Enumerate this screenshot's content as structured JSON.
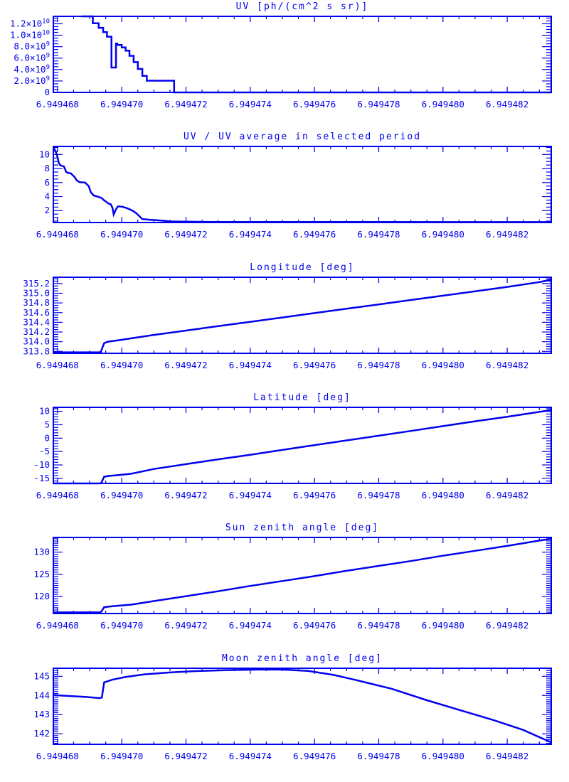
{
  "page": {
    "background": "#ffffff",
    "accent": "#0101EE"
  },
  "chart_data": {
    "type": "line",
    "grid": false,
    "legend": "none",
    "x_axis": {
      "u_min": -0.13,
      "u_max": 15.37,
      "minor_step": 0.5,
      "major_ticks": [
        {
          "u": 0,
          "label": "6.949468"
        },
        {
          "u": 2,
          "label": "6.949470"
        },
        {
          "u": 4,
          "label": "6.949472"
        },
        {
          "u": 6,
          "label": "6.949474"
        },
        {
          "u": 8,
          "label": "6.949476"
        },
        {
          "u": 10,
          "label": "6.949478"
        },
        {
          "u": 12,
          "label": "6.949480"
        },
        {
          "u": 14,
          "label": "6.949482"
        }
      ]
    },
    "plots": [
      {
        "title": "UV [ph/(cm^2 s sr)]",
        "y_range": [
          0,
          13.3
        ],
        "y_minor_step": 0.5,
        "y_labels": [
          {
            "v": 12,
            "label": "1.2×10^10"
          },
          {
            "v": 10,
            "label": "1.0×10^10"
          },
          {
            "v": 8,
            "label": "8.0×10^9"
          },
          {
            "v": 6,
            "label": "6.0×10^9"
          },
          {
            "v": 4,
            "label": "4.0×10^9"
          },
          {
            "v": 2,
            "label": "2.0×10^9"
          },
          {
            "v": 0,
            "label": "0"
          }
        ],
        "series": [
          [
            0.75,
            13.3
          ],
          [
            1.1,
            13.3
          ],
          [
            1.1,
            12.1
          ],
          [
            1.28,
            12.1
          ],
          [
            1.28,
            11.3
          ],
          [
            1.42,
            11.3
          ],
          [
            1.42,
            10.55
          ],
          [
            1.54,
            10.55
          ],
          [
            1.54,
            9.75
          ],
          [
            1.68,
            9.75
          ],
          [
            1.68,
            4.35
          ],
          [
            1.82,
            4.35
          ],
          [
            1.82,
            8.55
          ],
          [
            1.86,
            8.55
          ],
          [
            1.86,
            8.3
          ],
          [
            2.0,
            8.3
          ],
          [
            2.0,
            7.85
          ],
          [
            2.12,
            7.85
          ],
          [
            2.12,
            7.3
          ],
          [
            2.24,
            7.3
          ],
          [
            2.24,
            6.4
          ],
          [
            2.37,
            6.4
          ],
          [
            2.37,
            5.3
          ],
          [
            2.5,
            5.3
          ],
          [
            2.5,
            4.1
          ],
          [
            2.64,
            4.1
          ],
          [
            2.64,
            2.9
          ],
          [
            2.78,
            2.9
          ],
          [
            2.78,
            2.05
          ],
          [
            3.63,
            2.05
          ],
          [
            3.63,
            0
          ],
          [
            15.37,
            0
          ]
        ]
      },
      {
        "title": "UV / UV average in selected period",
        "y_range": [
          0.3,
          11.15
        ],
        "y_minor_step": 0.5,
        "y_labels": [
          {
            "v": 10,
            "label": "10"
          },
          {
            "v": 8,
            "label": "8"
          },
          {
            "v": 6,
            "label": "6"
          },
          {
            "v": 4,
            "label": "4"
          },
          {
            "v": 2,
            "label": "2"
          }
        ],
        "series": [
          [
            -0.13,
            11.1
          ],
          [
            -0.07,
            10.5
          ],
          [
            -0.02,
            10.0
          ],
          [
            0.04,
            8.8
          ],
          [
            0.09,
            8.45
          ],
          [
            0.2,
            8.3
          ],
          [
            0.27,
            7.5
          ],
          [
            0.32,
            7.4
          ],
          [
            0.42,
            7.3
          ],
          [
            0.53,
            6.8
          ],
          [
            0.6,
            6.3
          ],
          [
            0.69,
            6.05
          ],
          [
            0.86,
            6.0
          ],
          [
            0.97,
            5.5
          ],
          [
            1.04,
            4.6
          ],
          [
            1.13,
            4.15
          ],
          [
            1.24,
            4.0
          ],
          [
            1.37,
            3.8
          ],
          [
            1.44,
            3.5
          ],
          [
            1.53,
            3.2
          ],
          [
            1.59,
            3.0
          ],
          [
            1.66,
            2.9
          ],
          [
            1.71,
            2.4
          ],
          [
            1.75,
            1.45
          ],
          [
            1.82,
            2.2
          ],
          [
            1.88,
            2.6
          ],
          [
            2.02,
            2.55
          ],
          [
            2.13,
            2.4
          ],
          [
            2.24,
            2.2
          ],
          [
            2.35,
            1.95
          ],
          [
            2.46,
            1.6
          ],
          [
            2.55,
            1.2
          ],
          [
            2.64,
            0.8
          ],
          [
            2.86,
            0.7
          ],
          [
            3.08,
            0.62
          ],
          [
            3.3,
            0.55
          ],
          [
            3.52,
            0.45
          ],
          [
            3.96,
            0.42
          ],
          [
            4.85,
            0.38
          ],
          [
            15.37,
            0.36
          ]
        ]
      },
      {
        "title": "Longitude [deg]",
        "y_range": [
          313.76,
          315.33
        ],
        "y_minor_step": 0.05,
        "y_labels": [
          {
            "v": 315.2,
            "label": "315.2"
          },
          {
            "v": 315.0,
            "label": "315.0"
          },
          {
            "v": 314.8,
            "label": "314.8"
          },
          {
            "v": 314.6,
            "label": "314.6"
          },
          {
            "v": 314.4,
            "label": "314.4"
          },
          {
            "v": 314.2,
            "label": "314.2"
          },
          {
            "v": 314.0,
            "label": "314.0"
          },
          {
            "v": 313.8,
            "label": "313.8"
          }
        ],
        "series": [
          [
            -0.13,
            313.78
          ],
          [
            1.3,
            313.78
          ],
          [
            1.35,
            313.79
          ],
          [
            1.45,
            313.97
          ],
          [
            1.57,
            314.0
          ],
          [
            1.9,
            314.03
          ],
          [
            2.3,
            314.07
          ],
          [
            3,
            314.14
          ],
          [
            4,
            314.23
          ],
          [
            5,
            314.32
          ],
          [
            6,
            314.41
          ],
          [
            7,
            314.5
          ],
          [
            8,
            314.59
          ],
          [
            9,
            314.68
          ],
          [
            10,
            314.77
          ],
          [
            11,
            314.86
          ],
          [
            12,
            314.95
          ],
          [
            13,
            315.04
          ],
          [
            14,
            315.13
          ],
          [
            15,
            315.23
          ],
          [
            15.37,
            315.28
          ]
        ]
      },
      {
        "title": "Latitude [deg]",
        "y_range": [
          -16.9,
          11.5
        ],
        "y_minor_step": 1,
        "y_labels": [
          {
            "v": 10,
            "label": "10"
          },
          {
            "v": 5,
            "label": "5"
          },
          {
            "v": 0,
            "label": "0"
          },
          {
            "v": -5,
            "label": "-5"
          },
          {
            "v": -10,
            "label": "-10"
          },
          {
            "v": -15,
            "label": "-15"
          }
        ],
        "series": [
          [
            -0.13,
            -17.2
          ],
          [
            1.3,
            -17.2
          ],
          [
            1.36,
            -16.8
          ],
          [
            1.45,
            -14.4
          ],
          [
            1.6,
            -14.1
          ],
          [
            1.9,
            -13.8
          ],
          [
            2.3,
            -13.3
          ],
          [
            3,
            -11.5
          ],
          [
            4,
            -9.7
          ],
          [
            5,
            -7.9
          ],
          [
            6,
            -6.2
          ],
          [
            7,
            -4.4
          ],
          [
            8,
            -2.6
          ],
          [
            9,
            -0.85
          ],
          [
            10,
            0.9
          ],
          [
            11,
            2.7
          ],
          [
            12,
            4.5
          ],
          [
            13,
            6.3
          ],
          [
            14,
            8.0
          ],
          [
            15,
            9.8
          ],
          [
            15.37,
            10.5
          ]
        ]
      },
      {
        "title": "Sun zenith angle [deg]",
        "y_range": [
          116.2,
          133.3
        ],
        "y_minor_step": 0.5,
        "y_labels": [
          {
            "v": 130,
            "label": "130"
          },
          {
            "v": 125,
            "label": "125"
          },
          {
            "v": 120,
            "label": "120"
          }
        ],
        "series": [
          [
            -0.13,
            116.45
          ],
          [
            1.3,
            116.45
          ],
          [
            1.36,
            116.6
          ],
          [
            1.45,
            117.6
          ],
          [
            1.6,
            117.75
          ],
          [
            1.9,
            117.95
          ],
          [
            2.3,
            118.2
          ],
          [
            3,
            119.0
          ],
          [
            4,
            120.1
          ],
          [
            5,
            121.2
          ],
          [
            6,
            122.4
          ],
          [
            7,
            123.5
          ],
          [
            8,
            124.6
          ],
          [
            9,
            125.8
          ],
          [
            10,
            126.9
          ],
          [
            11,
            128.0
          ],
          [
            12,
            129.2
          ],
          [
            13,
            130.3
          ],
          [
            14,
            131.4
          ],
          [
            15,
            132.6
          ],
          [
            15.37,
            133.0
          ]
        ]
      },
      {
        "title": "Moon zenith angle [deg]",
        "y_range": [
          141.45,
          145.42
        ],
        "y_minor_step": 0.1,
        "y_labels": [
          {
            "v": 145,
            "label": "145"
          },
          {
            "v": 144,
            "label": "144"
          },
          {
            "v": 143,
            "label": "143"
          },
          {
            "v": 142,
            "label": "142"
          }
        ],
        "series": [
          [
            -0.13,
            144.02
          ],
          [
            0.4,
            143.97
          ],
          [
            0.9,
            143.92
          ],
          [
            1.3,
            143.86
          ],
          [
            1.38,
            143.89
          ],
          [
            1.45,
            144.68
          ],
          [
            1.7,
            144.82
          ],
          [
            2.1,
            144.96
          ],
          [
            2.7,
            145.1
          ],
          [
            3.5,
            145.2
          ],
          [
            4.3,
            145.27
          ],
          [
            5.2,
            145.32
          ],
          [
            6.2,
            145.35
          ],
          [
            7.0,
            145.35
          ],
          [
            7.8,
            145.28
          ],
          [
            8.6,
            145.07
          ],
          [
            9.3,
            144.8
          ],
          [
            10.4,
            144.35
          ],
          [
            11.5,
            143.75
          ],
          [
            12.7,
            143.15
          ],
          [
            13.6,
            142.7
          ],
          [
            14.5,
            142.2
          ],
          [
            15.37,
            141.55
          ]
        ]
      }
    ]
  }
}
